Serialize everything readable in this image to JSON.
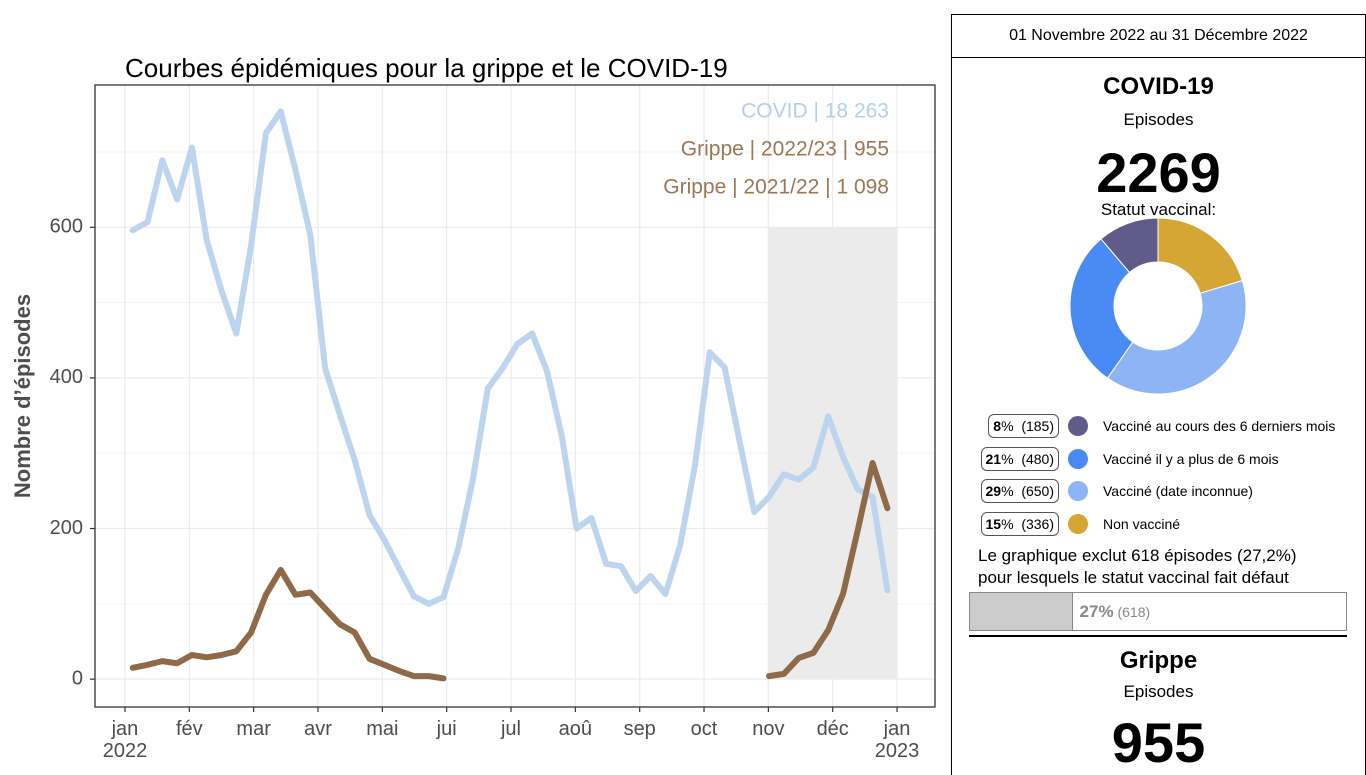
{
  "chart_data": {
    "type": "line",
    "title": "Courbes épidémiques pour la grippe et le COVID-19",
    "ylabel": "Nombre d’épisodes",
    "xlim": [
      -0.466,
      12.59
    ],
    "xticks": [
      {
        "value": 0,
        "label": "jan 2022"
      },
      {
        "value": 1,
        "label": "fév"
      },
      {
        "value": 2,
        "label": "mar"
      },
      {
        "value": 3,
        "label": "avr"
      },
      {
        "value": 4,
        "label": "mai"
      },
      {
        "value": 5,
        "label": "jui"
      },
      {
        "value": 6,
        "label": "jul"
      },
      {
        "value": 7,
        "label": "aoû"
      },
      {
        "value": 8,
        "label": "sep"
      },
      {
        "value": 9,
        "label": "oct"
      },
      {
        "value": 10,
        "label": "nov"
      },
      {
        "value": 11,
        "label": "déc"
      },
      {
        "value": 12,
        "label": "jan 2023"
      }
    ],
    "ylim": [
      -37,
      789
    ],
    "yticks": [
      0,
      200,
      400,
      600
    ],
    "yminor": [
      100,
      300,
      500,
      700
    ],
    "grid": true,
    "legend": "top-right",
    "shaded": {
      "x": [
        10,
        12
      ],
      "y": [
        0,
        600
      ],
      "color": "#ebebeb"
    },
    "series": [
      {
        "name": "COVID | 18 263",
        "color": "#bcd4ee",
        "legend_color": "#b5cfea",
        "x": [
          0.12,
          0.35,
          0.58,
          0.81,
          1.04,
          1.27,
          1.5,
          1.73,
          1.96,
          2.19,
          2.42,
          2.65,
          2.88,
          3.11,
          3.34,
          3.57,
          3.8,
          4.03,
          4.26,
          4.49,
          4.72,
          4.95,
          5.18,
          5.41,
          5.64,
          5.87,
          6.1,
          6.33,
          6.56,
          6.79,
          7.02,
          7.25,
          7.48,
          7.71,
          7.94,
          8.17,
          8.4,
          8.63,
          8.86,
          9.09,
          9.32,
          9.55,
          9.78,
          10.01,
          10.24,
          10.47,
          10.7,
          10.93,
          11.16,
          11.39,
          11.62,
          11.85
        ],
        "values": [
          596,
          607,
          689,
          637,
          706,
          583,
          516,
          459,
          576,
          725,
          754,
          676,
          590,
          413,
          351,
          291,
          218,
          185,
          147,
          110,
          100,
          109,
          174,
          267,
          386,
          413,
          445,
          459,
          409,
          323,
          200,
          214,
          153,
          150,
          117,
          137,
          113,
          178,
          284,
          434,
          414,
          317,
          222,
          242,
          272,
          265,
          281,
          349,
          295,
          252,
          242,
          118
        ]
      },
      {
        "name": "Grippe | 2022/23 | 955",
        "color": "#8e6a48",
        "legend_color": "#9b7755",
        "x": [
          10.01,
          10.24,
          10.47,
          10.7,
          10.93,
          11.16,
          11.39,
          11.62,
          11.85
        ],
        "values": [
          4,
          7,
          28,
          35,
          65,
          113,
          198,
          287,
          227
        ]
      },
      {
        "name": "Grippe | 2021/22 | 1 098",
        "color": "#8e6a48",
        "legend_color": "#9b7755",
        "x": [
          0.12,
          0.35,
          0.58,
          0.81,
          1.04,
          1.27,
          1.5,
          1.73,
          1.96,
          2.19,
          2.42,
          2.65,
          2.88,
          3.11,
          3.34,
          3.57,
          3.8,
          4.03,
          4.26,
          4.49,
          4.72,
          4.95
        ],
        "values": [
          15,
          19,
          24,
          21,
          32,
          29,
          32,
          37,
          62,
          112,
          145,
          112,
          115,
          94,
          73,
          62,
          27,
          19,
          11,
          4,
          4,
          1
        ]
      }
    ]
  },
  "panel": {
    "period": "01 Novembre 2022 au 31 Décembre 2022",
    "covid": {
      "title": "COVID-19",
      "subtitle": "Episodes",
      "count": 2269,
      "status_title": "Statut vaccinal:",
      "pct_unit": "%",
      "items": [
        {
          "label": "Vacciné au cours des 6 derniers mois",
          "pct": 8,
          "count": 185,
          "count_label": "(185)",
          "color": "#605b89"
        },
        {
          "label": "Vacciné il y a plus de 6 mois",
          "pct": 21,
          "count": 480,
          "count_label": "(480)",
          "color": "#4a8af5"
        },
        {
          "label": "Vacciné (date inconnue)",
          "pct": 29,
          "count": 650,
          "count_label": "(650)",
          "color": "#8db4f4"
        },
        {
          "label": "Non vacciné",
          "pct": 15,
          "count": 336,
          "count_label": "(336)",
          "color": "#d5a634"
        }
      ],
      "note": [
        "Le graphique exclut 618 épisodes (27,2%)",
        "pour lesquels le statut vaccinal fait défaut"
      ],
      "missing": {
        "pct": 27,
        "count": 618,
        "count_label": "(618)"
      }
    },
    "grippe": {
      "title": "Grippe",
      "subtitle": "Episodes",
      "count": 955
    }
  }
}
